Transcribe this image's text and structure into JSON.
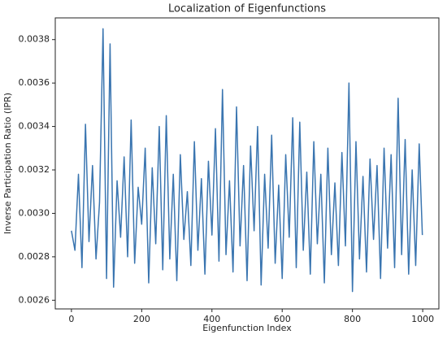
{
  "chart_data": {
    "type": "line",
    "title": "Localization of Eigenfunctions",
    "xlabel": "Eigenfunction Index",
    "ylabel": "Inverse Participation Ratio (IPR)",
    "x": [
      0,
      10,
      20,
      30,
      40,
      50,
      60,
      70,
      80,
      90,
      100,
      110,
      120,
      130,
      140,
      150,
      160,
      170,
      180,
      190,
      200,
      210,
      220,
      230,
      240,
      250,
      260,
      270,
      280,
      290,
      300,
      310,
      320,
      330,
      340,
      350,
      360,
      370,
      380,
      390,
      400,
      410,
      420,
      430,
      440,
      450,
      460,
      470,
      480,
      490,
      500,
      510,
      520,
      530,
      540,
      550,
      560,
      570,
      580,
      590,
      600,
      610,
      620,
      630,
      640,
      650,
      660,
      670,
      680,
      690,
      700,
      710,
      720,
      730,
      740,
      750,
      760,
      770,
      780,
      790,
      800,
      810,
      820,
      830,
      840,
      850,
      860,
      870,
      880,
      890,
      900,
      910,
      920,
      930,
      940,
      950,
      960,
      970,
      980,
      990,
      999
    ],
    "series": [
      {
        "name": "IPR",
        "color": "#3a75b0",
        "values": [
          0.00292,
          0.00283,
          0.00318,
          0.00275,
          0.00341,
          0.00287,
          0.00322,
          0.00279,
          0.00305,
          0.00385,
          0.0027,
          0.00378,
          0.00266,
          0.00315,
          0.00289,
          0.00326,
          0.0028,
          0.00343,
          0.00277,
          0.00312,
          0.00295,
          0.0033,
          0.00268,
          0.00321,
          0.00286,
          0.0034,
          0.00274,
          0.00345,
          0.00279,
          0.00318,
          0.00269,
          0.00327,
          0.00288,
          0.0031,
          0.00276,
          0.00333,
          0.00283,
          0.00316,
          0.00272,
          0.00324,
          0.0029,
          0.00339,
          0.00278,
          0.00357,
          0.00281,
          0.00315,
          0.00273,
          0.00349,
          0.00285,
          0.00322,
          0.00269,
          0.00331,
          0.00292,
          0.0034,
          0.00267,
          0.00318,
          0.00284,
          0.00336,
          0.00277,
          0.00313,
          0.0027,
          0.00327,
          0.00289,
          0.00344,
          0.00275,
          0.00342,
          0.00283,
          0.00319,
          0.00272,
          0.00333,
          0.00286,
          0.00318,
          0.00268,
          0.0033,
          0.00281,
          0.00314,
          0.00276,
          0.00328,
          0.00285,
          0.0036,
          0.00264,
          0.00333,
          0.00279,
          0.00317,
          0.00273,
          0.00325,
          0.00288,
          0.00322,
          0.0027,
          0.0033,
          0.00284,
          0.00327,
          0.00275,
          0.00353,
          0.00281,
          0.00334,
          0.00272,
          0.0032,
          0.00276,
          0.00332,
          0.0029
        ]
      }
    ],
    "xlim": [
      -46,
      1046
    ],
    "xticks": [
      0,
      200,
      400,
      600,
      800,
      1000
    ],
    "ylim": [
      0.00256,
      0.0039
    ],
    "yticks": [
      0.0026,
      0.0028,
      {
        "value": 0.003,
        "label": "0.0030"
      },
      0.0032,
      0.0034,
      0.0036,
      0.0038
    ]
  }
}
